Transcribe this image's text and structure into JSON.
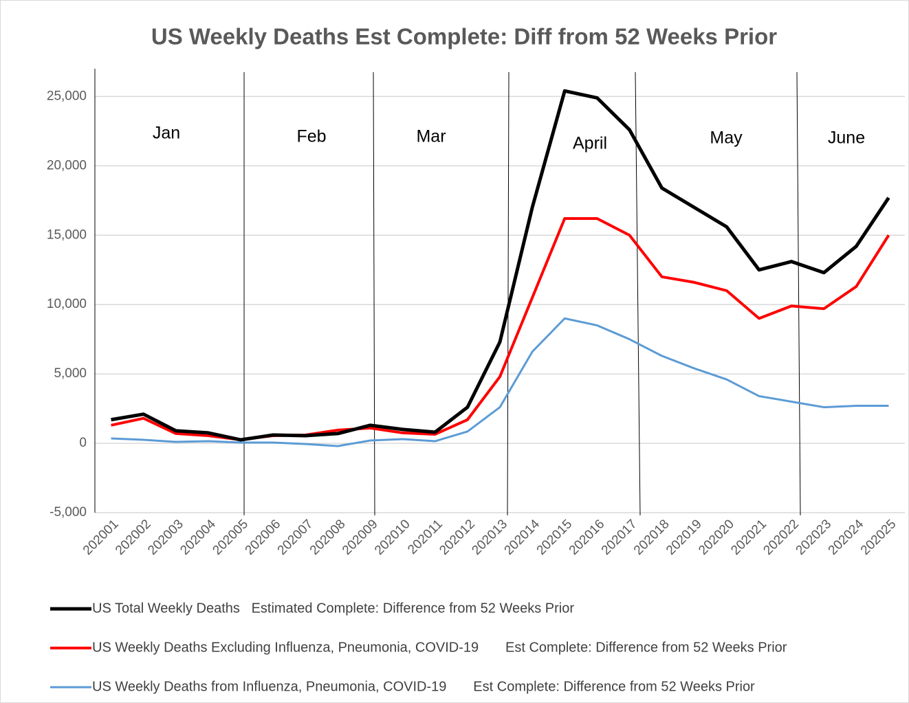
{
  "chart_data": {
    "type": "line",
    "title": "US Weekly Deaths Est Complete: Diff from 52 Weeks Prior",
    "categories": [
      "202001",
      "202002",
      "202003",
      "202004",
      "202005",
      "202006",
      "202007",
      "202008",
      "202009",
      "202010",
      "202011",
      "202012",
      "202013",
      "202014",
      "202015",
      "202016",
      "202017",
      "202018",
      "202019",
      "202020",
      "202021",
      "202022",
      "202023",
      "202024",
      "202025"
    ],
    "series": [
      {
        "name": "US Total Weekly Deaths   Estimated Complete: Difference from 52 Weeks Prior",
        "color": "#000000",
        "width": 5,
        "values": [
          1700,
          2100,
          900,
          750,
          250,
          600,
          550,
          700,
          1300,
          1000,
          800,
          2600,
          7300,
          17000,
          25400,
          24900,
          22600,
          18400,
          17000,
          15600,
          12500,
          13100,
          12300,
          14200,
          17700
        ]
      },
      {
        "name": "US Weekly Deaths Excluding Influenza, Pneumonia, COVID-19       Est Complete: Difference from 52 Weeks Prior",
        "color": "#ff0000",
        "width": 4,
        "values": [
          1300,
          1800,
          700,
          550,
          250,
          550,
          600,
          950,
          1100,
          750,
          650,
          1700,
          4800,
          10500,
          16200,
          16200,
          15000,
          12000,
          11600,
          11000,
          9000,
          9900,
          9700,
          11300,
          15000
        ]
      },
      {
        "name": "US Weekly Deaths from Influenza, Pneumonia, COVID-19       Est Complete: Difference from 52 Weeks Prior",
        "color": "#5b9bd5",
        "width": 3,
        "values": [
          350,
          250,
          100,
          150,
          50,
          50,
          -50,
          -200,
          200,
          300,
          150,
          850,
          2600,
          6600,
          9000,
          8500,
          7500,
          6300,
          5400,
          4600,
          3400,
          3000,
          2600,
          2700,
          2700
        ]
      }
    ],
    "annotations": [
      "Jan",
      "Feb",
      "Mar",
      "April",
      "May",
      "June"
    ],
    "ylim": [
      -5000,
      27000
    ],
    "yticks": [
      {
        "value": -5000,
        "label": "-5,000"
      },
      0,
      {
        "value": 5000,
        "label": "5,000"
      },
      {
        "value": 10000,
        "label": "10,000"
      },
      {
        "value": 15000,
        "label": "15,000"
      },
      {
        "value": 20000,
        "label": "20,000"
      },
      {
        "value": 25000,
        "label": "25,000"
      }
    ],
    "grid": true
  }
}
